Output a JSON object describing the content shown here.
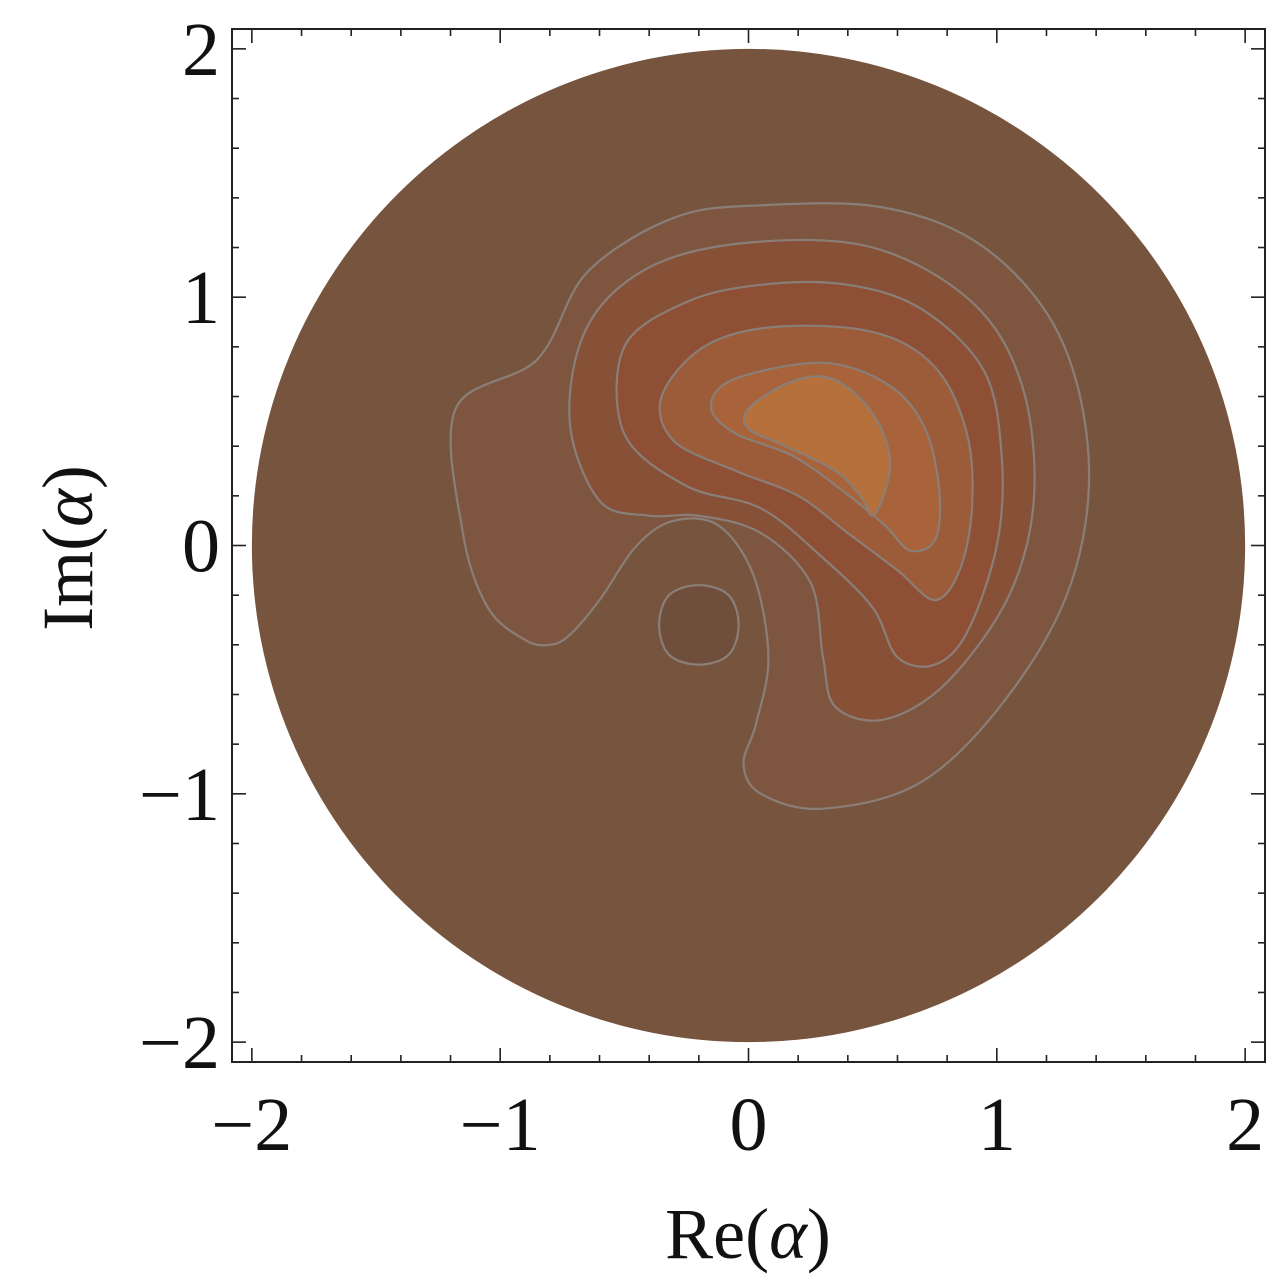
{
  "chart_data": {
    "type": "contour",
    "xlabel_prefix": "Re(",
    "xlabel_symbol": "α",
    "xlabel_suffix": ")",
    "ylabel_prefix": "Im(",
    "ylabel_symbol": "α",
    "ylabel_suffix": ")",
    "xlim": [
      -2.08,
      2.08
    ],
    "ylim": [
      -2.08,
      2.08
    ],
    "x_ticks": [
      {
        "value": -2,
        "label": "−2"
      },
      {
        "value": -1,
        "label": "−1"
      },
      {
        "value": 0,
        "label": "0"
      },
      {
        "value": 1,
        "label": "1"
      },
      {
        "value": 2,
        "label": "2"
      }
    ],
    "y_ticks": [
      {
        "value": -2,
        "label": "−2"
      },
      {
        "value": -1,
        "label": "−1"
      },
      {
        "value": 0,
        "label": "0"
      },
      {
        "value": 1,
        "label": "1"
      },
      {
        "value": 2,
        "label": "2"
      }
    ],
    "minor_tick_step": 0.2,
    "domain_disk": {
      "center": [
        0,
        0
      ],
      "radius": 2,
      "color": "#77543d"
    },
    "contours": [
      {
        "level": 1,
        "color": "#7e5640",
        "points": [
          [
            0.05,
            1.37
          ],
          [
            -0.3,
            1.32
          ],
          [
            -0.65,
            1.1
          ],
          [
            -0.85,
            0.75
          ],
          [
            -1.18,
            0.55
          ],
          [
            -1.15,
            0.05
          ],
          [
            -1.05,
            -0.25
          ],
          [
            -0.9,
            -0.38
          ],
          [
            -0.8,
            -0.4
          ],
          [
            -0.72,
            -0.36
          ],
          [
            -0.6,
            -0.22
          ],
          [
            -0.45,
            0.0
          ],
          [
            -0.3,
            0.1
          ],
          [
            -0.12,
            0.08
          ],
          [
            0.02,
            -0.12
          ],
          [
            0.08,
            -0.45
          ],
          [
            0.03,
            -0.72
          ],
          [
            -0.02,
            -0.88
          ],
          [
            0.05,
            -1.0
          ],
          [
            0.3,
            -1.06
          ],
          [
            0.7,
            -0.95
          ],
          [
            1.05,
            -0.6
          ],
          [
            1.3,
            -0.15
          ],
          [
            1.37,
            0.35
          ],
          [
            1.25,
            0.85
          ],
          [
            0.95,
            1.2
          ],
          [
            0.55,
            1.36
          ]
        ]
      },
      {
        "level": 2,
        "color": "#875138",
        "points": [
          [
            0.0,
            1.22
          ],
          [
            -0.4,
            1.12
          ],
          [
            -0.65,
            0.88
          ],
          [
            -0.72,
            0.5
          ],
          [
            -0.6,
            0.18
          ],
          [
            -0.4,
            0.12
          ],
          [
            -0.2,
            0.12
          ],
          [
            0.05,
            0.05
          ],
          [
            0.25,
            -0.15
          ],
          [
            0.3,
            -0.45
          ],
          [
            0.35,
            -0.65
          ],
          [
            0.55,
            -0.7
          ],
          [
            0.8,
            -0.55
          ],
          [
            1.05,
            -0.2
          ],
          [
            1.15,
            0.2
          ],
          [
            1.1,
            0.65
          ],
          [
            0.9,
            0.98
          ],
          [
            0.5,
            1.2
          ]
        ]
      },
      {
        "level": 3,
        "color": "#8e4f34",
        "points": [
          [
            0.05,
            1.05
          ],
          [
            -0.25,
            0.98
          ],
          [
            -0.5,
            0.8
          ],
          [
            -0.5,
            0.45
          ],
          [
            -0.25,
            0.24
          ],
          [
            0.05,
            0.15
          ],
          [
            0.3,
            -0.05
          ],
          [
            0.5,
            -0.25
          ],
          [
            0.6,
            -0.45
          ],
          [
            0.75,
            -0.48
          ],
          [
            0.88,
            -0.35
          ],
          [
            1.0,
            0.0
          ],
          [
            1.02,
            0.35
          ],
          [
            0.95,
            0.7
          ],
          [
            0.7,
            0.95
          ],
          [
            0.4,
            1.05
          ]
        ]
      },
      {
        "level": 4,
        "color": "#9c5b39",
        "points": [
          [
            0.1,
            0.88
          ],
          [
            -0.18,
            0.8
          ],
          [
            -0.35,
            0.6
          ],
          [
            -0.3,
            0.42
          ],
          [
            -0.05,
            0.3
          ],
          [
            0.2,
            0.2
          ],
          [
            0.4,
            0.05
          ],
          [
            0.6,
            -0.1
          ],
          [
            0.75,
            -0.22
          ],
          [
            0.85,
            -0.1
          ],
          [
            0.9,
            0.15
          ],
          [
            0.88,
            0.45
          ],
          [
            0.75,
            0.72
          ],
          [
            0.5,
            0.86
          ]
        ]
      },
      {
        "level": 5,
        "color": "#a8633a",
        "points": [
          [
            0.2,
            0.73
          ],
          [
            -0.08,
            0.66
          ],
          [
            -0.15,
            0.55
          ],
          [
            -0.05,
            0.45
          ],
          [
            0.18,
            0.36
          ],
          [
            0.38,
            0.22
          ],
          [
            0.55,
            0.08
          ],
          [
            0.65,
            -0.02
          ],
          [
            0.75,
            0.02
          ],
          [
            0.77,
            0.2
          ],
          [
            0.72,
            0.45
          ],
          [
            0.6,
            0.62
          ],
          [
            0.4,
            0.72
          ]
        ]
      },
      {
        "level": 6,
        "color": "#b5703c",
        "points": [
          [
            0.3,
            0.68
          ],
          [
            0.15,
            0.65
          ],
          [
            0.0,
            0.55
          ],
          [
            0.0,
            0.47
          ],
          [
            0.15,
            0.4
          ],
          [
            0.35,
            0.3
          ],
          [
            0.45,
            0.2
          ],
          [
            0.5,
            0.12
          ],
          [
            0.55,
            0.22
          ],
          [
            0.57,
            0.35
          ],
          [
            0.52,
            0.5
          ],
          [
            0.42,
            0.62
          ]
        ]
      },
      {
        "level": -1,
        "color": "#6f4e3c",
        "points": [
          [
            -0.2,
            -0.16
          ],
          [
            -0.08,
            -0.2
          ],
          [
            -0.04,
            -0.32
          ],
          [
            -0.08,
            -0.44
          ],
          [
            -0.2,
            -0.48
          ],
          [
            -0.32,
            -0.44
          ],
          [
            -0.36,
            -0.32
          ],
          [
            -0.32,
            -0.2
          ]
        ]
      }
    ]
  }
}
